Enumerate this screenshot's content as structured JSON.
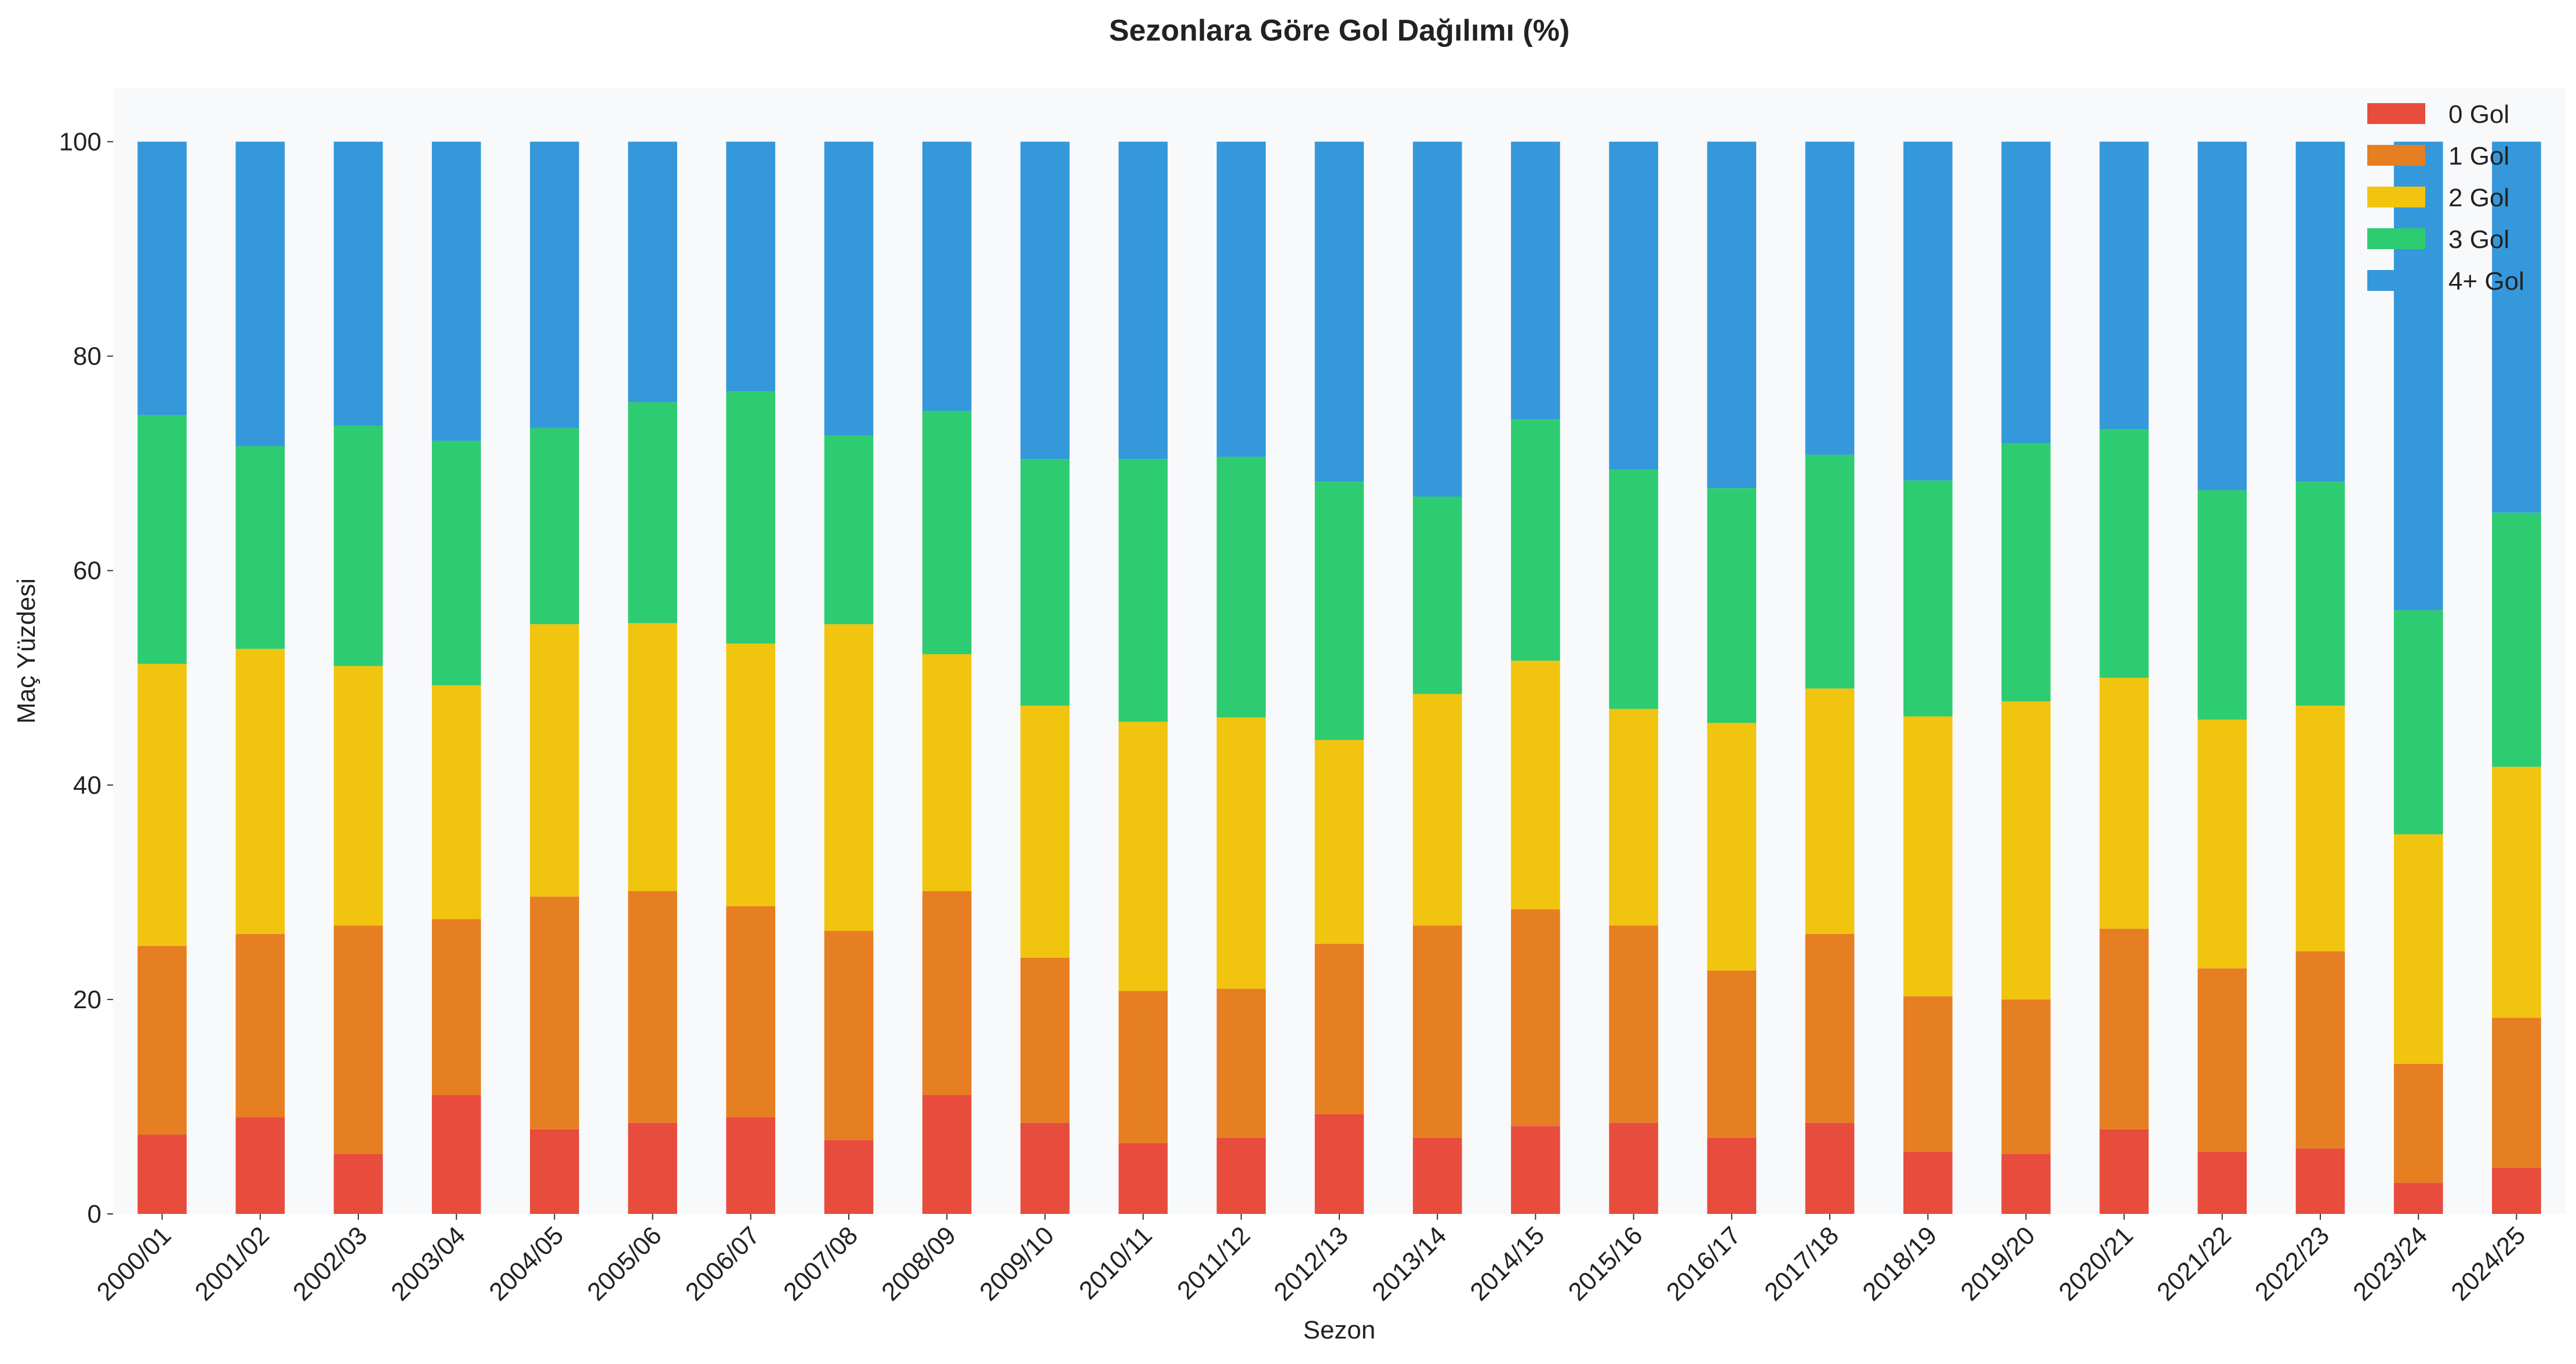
{
  "chart_data": {
    "type": "bar",
    "stacked": true,
    "title": "Sezonlara Göre Gol Dağılımı (%)",
    "xlabel": "Sezon",
    "ylabel": "Maç Yüzdesi",
    "ylim": [
      0,
      105
    ],
    "yticks": [
      0,
      20,
      40,
      60,
      80,
      100
    ],
    "grid": false,
    "legend_position": "top-right",
    "plot_background": "#f8f9fb",
    "categories": [
      "2000/01",
      "2001/02",
      "2002/03",
      "2003/04",
      "2004/05",
      "2005/06",
      "2006/07",
      "2007/08",
      "2008/09",
      "2009/10",
      "2010/11",
      "2011/12",
      "2012/13",
      "2013/14",
      "2014/15",
      "2015/16",
      "2016/17",
      "2017/18",
      "2018/19",
      "2019/20",
      "2020/21",
      "2021/22",
      "2022/23",
      "2023/24",
      "2024/25"
    ],
    "series": [
      {
        "name": "0 Gol",
        "color": "#e74c3c",
        "values": [
          7.4,
          9.0,
          5.6,
          11.1,
          7.9,
          8.5,
          9.0,
          6.9,
          11.1,
          8.5,
          6.6,
          7.1,
          9.3,
          7.1,
          8.2,
          8.5,
          7.1,
          8.5,
          5.8,
          5.6,
          7.9,
          5.8,
          6.1,
          2.9,
          4.3
        ]
      },
      {
        "name": "1 Gol",
        "color": "#e67e22",
        "values": [
          17.6,
          17.1,
          21.3,
          16.4,
          21.7,
          21.6,
          19.7,
          19.5,
          19.0,
          15.4,
          14.2,
          13.9,
          15.9,
          19.8,
          20.2,
          18.4,
          15.6,
          17.6,
          14.5,
          14.4,
          18.7,
          17.1,
          18.4,
          11.1,
          14.0
        ]
      },
      {
        "name": "2 Gol",
        "color": "#f1c40f",
        "values": [
          26.3,
          26.6,
          24.2,
          21.8,
          25.4,
          25.0,
          24.5,
          28.6,
          22.1,
          23.5,
          25.1,
          25.3,
          19.0,
          21.6,
          23.2,
          20.2,
          23.1,
          22.9,
          26.1,
          27.8,
          23.4,
          23.2,
          22.9,
          21.4,
          23.4
        ]
      },
      {
        "name": "3 Gol",
        "color": "#2ecc71",
        "values": [
          23.2,
          18.9,
          22.4,
          22.8,
          18.3,
          20.6,
          23.5,
          17.6,
          22.7,
          23.0,
          24.5,
          24.3,
          24.1,
          18.4,
          22.5,
          22.3,
          21.9,
          21.8,
          22.0,
          24.1,
          23.2,
          21.4,
          20.9,
          20.9,
          23.7
        ]
      },
      {
        "name": "4+ Gol",
        "color": "#3498db",
        "values": [
          25.5,
          28.4,
          26.5,
          27.9,
          26.7,
          24.3,
          23.3,
          27.4,
          25.1,
          29.6,
          29.6,
          29.4,
          31.7,
          33.1,
          25.9,
          30.6,
          32.3,
          29.2,
          31.6,
          28.1,
          26.8,
          32.5,
          31.7,
          43.7,
          34.6
        ]
      }
    ]
  }
}
